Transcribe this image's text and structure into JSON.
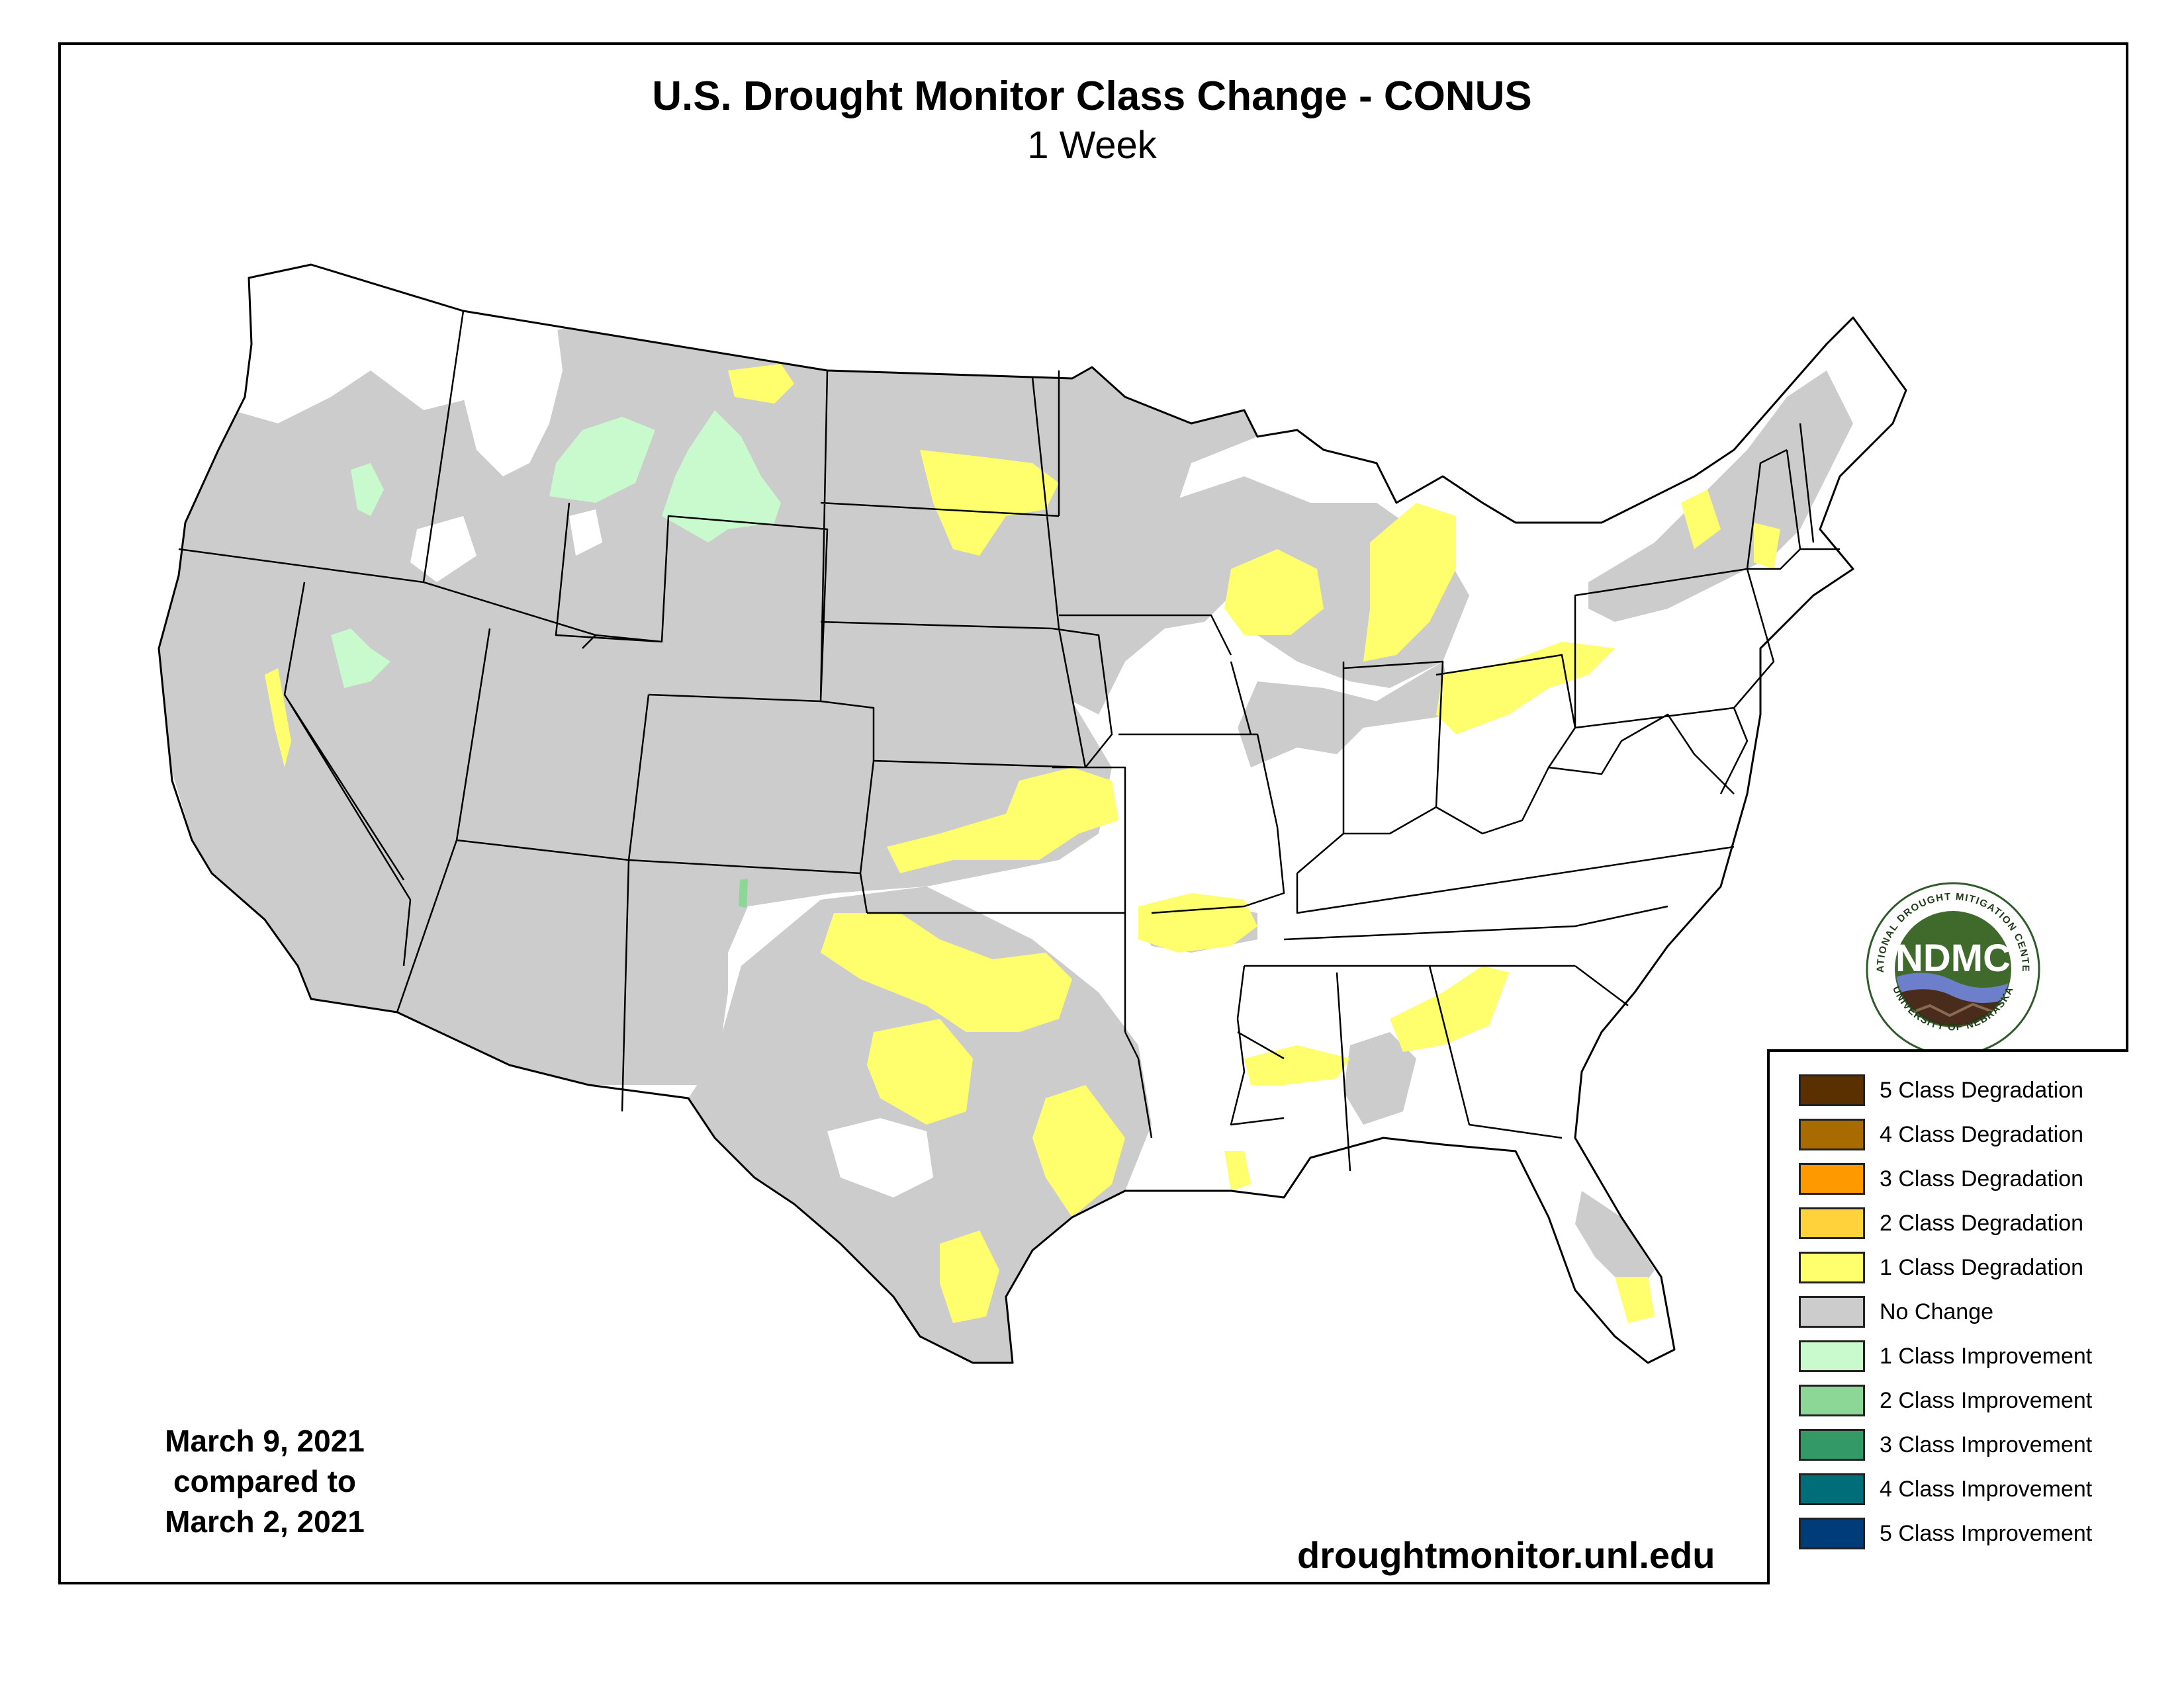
{
  "title": "U.S. Drought Monitor Class Change - CONUS",
  "subtitle": "1 Week",
  "dates": {
    "line1": "March 9, 2021",
    "line2": "compared to",
    "line3": "March 2, 2021"
  },
  "url": "droughtmonitor.unl.edu",
  "logo": {
    "abbr": "NDMC",
    "ring_text_top": "NATIONAL DROUGHT MITIGATION CENTER",
    "ring_text_bottom": "UNIVERSITY OF NEBRASKA"
  },
  "legend": [
    {
      "label": "5 Class Degradation",
      "color": "#5a3000"
    },
    {
      "label": "4 Class Degradation",
      "color": "#a86b00"
    },
    {
      "label": "3 Class Degradation",
      "color": "#ff9900"
    },
    {
      "label": "2 Class Degradation",
      "color": "#ffd23c"
    },
    {
      "label": "1 Class Degradation",
      "color": "#ffff6e"
    },
    {
      "label": "No Change",
      "color": "#cccccc"
    },
    {
      "label": "1 Class Improvement",
      "color": "#c8facd"
    },
    {
      "label": "2 Class Improvement",
      "color": "#8cd696"
    },
    {
      "label": "3 Class Improvement",
      "color": "#339966"
    },
    {
      "label": "4 Class Improvement",
      "color": "#006e78"
    },
    {
      "label": "5 Class Improvement",
      "color": "#003c78"
    }
  ],
  "map_colors": {
    "no_change": "#cccccc",
    "degradation_1": "#ffff6e",
    "improvement_1": "#c8facd",
    "improvement_2": "#8cd696",
    "land": "#ffffff",
    "border": "#000000"
  }
}
